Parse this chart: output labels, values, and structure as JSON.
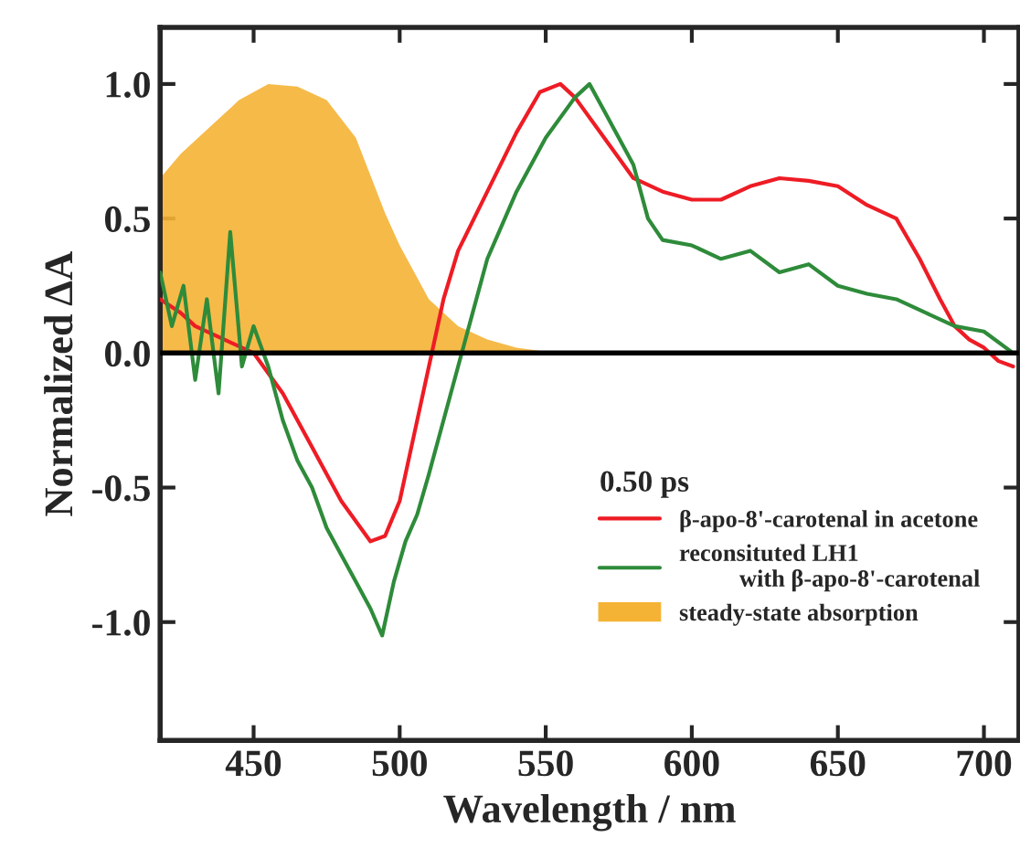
{
  "chart_data": {
    "type": "line",
    "xlabel": "Wavelength / nm",
    "ylabel": "Normalized ΔA",
    "legend_title": "0.50 ps",
    "legend": "right",
    "xlim": [
      418,
      712
    ],
    "ylim": [
      -1.44,
      1.21
    ],
    "xticks": [
      450,
      500,
      550,
      600,
      650,
      700
    ],
    "yticks": [
      {
        "value": -1.0,
        "label": "-1.0"
      },
      {
        "value": -0.5,
        "label": "-0.5"
      },
      {
        "value": 0.0,
        "label": "0.0"
      },
      {
        "value": 0.5,
        "label": "0.5"
      },
      {
        "value": 1.0,
        "label": "1.0"
      }
    ],
    "grid": false,
    "ref_lines": [
      {
        "axis": "y",
        "value": 0,
        "color": "#000000"
      }
    ],
    "series": [
      {
        "name": "β-apo-8'-carotenal in acetone",
        "color": "#ee1c25",
        "x": [
          418,
          425,
          430,
          440,
          450,
          460,
          470,
          480,
          490,
          495,
          500,
          505,
          510,
          515,
          520,
          530,
          540,
          548,
          555,
          560,
          570,
          580,
          590,
          600,
          610,
          620,
          630,
          640,
          650,
          660,
          670,
          678,
          685,
          690,
          695,
          700,
          705,
          710
        ],
        "values": [
          0.2,
          0.15,
          0.1,
          0.05,
          0.0,
          -0.15,
          -0.35,
          -0.55,
          -0.7,
          -0.68,
          -0.55,
          -0.3,
          -0.05,
          0.2,
          0.38,
          0.6,
          0.82,
          0.97,
          1.0,
          0.95,
          0.8,
          0.65,
          0.6,
          0.57,
          0.57,
          0.62,
          0.65,
          0.64,
          0.62,
          0.55,
          0.5,
          0.35,
          0.2,
          0.1,
          0.05,
          0.02,
          -0.03,
          -0.05
        ]
      },
      {
        "name": "reconsituted LH1\n          with β-apo-8'-carotenal",
        "color": "#2e8b3a",
        "x": [
          418,
          422,
          426,
          430,
          434,
          438,
          442,
          446,
          450,
          455,
          460,
          465,
          470,
          475,
          480,
          485,
          490,
          494,
          498,
          502,
          506,
          510,
          515,
          520,
          525,
          530,
          540,
          550,
          560,
          565,
          570,
          575,
          580,
          585,
          590,
          600,
          610,
          620,
          630,
          640,
          650,
          660,
          670,
          680,
          690,
          700,
          710
        ],
        "values": [
          0.3,
          0.1,
          0.25,
          -0.1,
          0.2,
          -0.15,
          0.45,
          -0.05,
          0.1,
          -0.05,
          -0.25,
          -0.4,
          -0.5,
          -0.65,
          -0.75,
          -0.85,
          -0.95,
          -1.05,
          -0.85,
          -0.7,
          -0.6,
          -0.45,
          -0.25,
          -0.05,
          0.15,
          0.35,
          0.6,
          0.8,
          0.95,
          1.0,
          0.9,
          0.8,
          0.7,
          0.5,
          0.42,
          0.4,
          0.35,
          0.38,
          0.3,
          0.33,
          0.25,
          0.22,
          0.2,
          0.15,
          0.1,
          0.08,
          0.0
        ]
      },
      {
        "name": "steady-state absorption",
        "type": "area",
        "color": "#f5b335",
        "x": [
          418,
          425,
          435,
          445,
          455,
          465,
          475,
          485,
          490,
          495,
          500,
          505,
          510,
          520,
          530,
          540,
          550,
          560
        ],
        "values": [
          0.65,
          0.74,
          0.84,
          0.94,
          1.0,
          0.99,
          0.94,
          0.8,
          0.66,
          0.52,
          0.4,
          0.3,
          0.2,
          0.1,
          0.05,
          0.02,
          0.005,
          0
        ]
      }
    ]
  }
}
